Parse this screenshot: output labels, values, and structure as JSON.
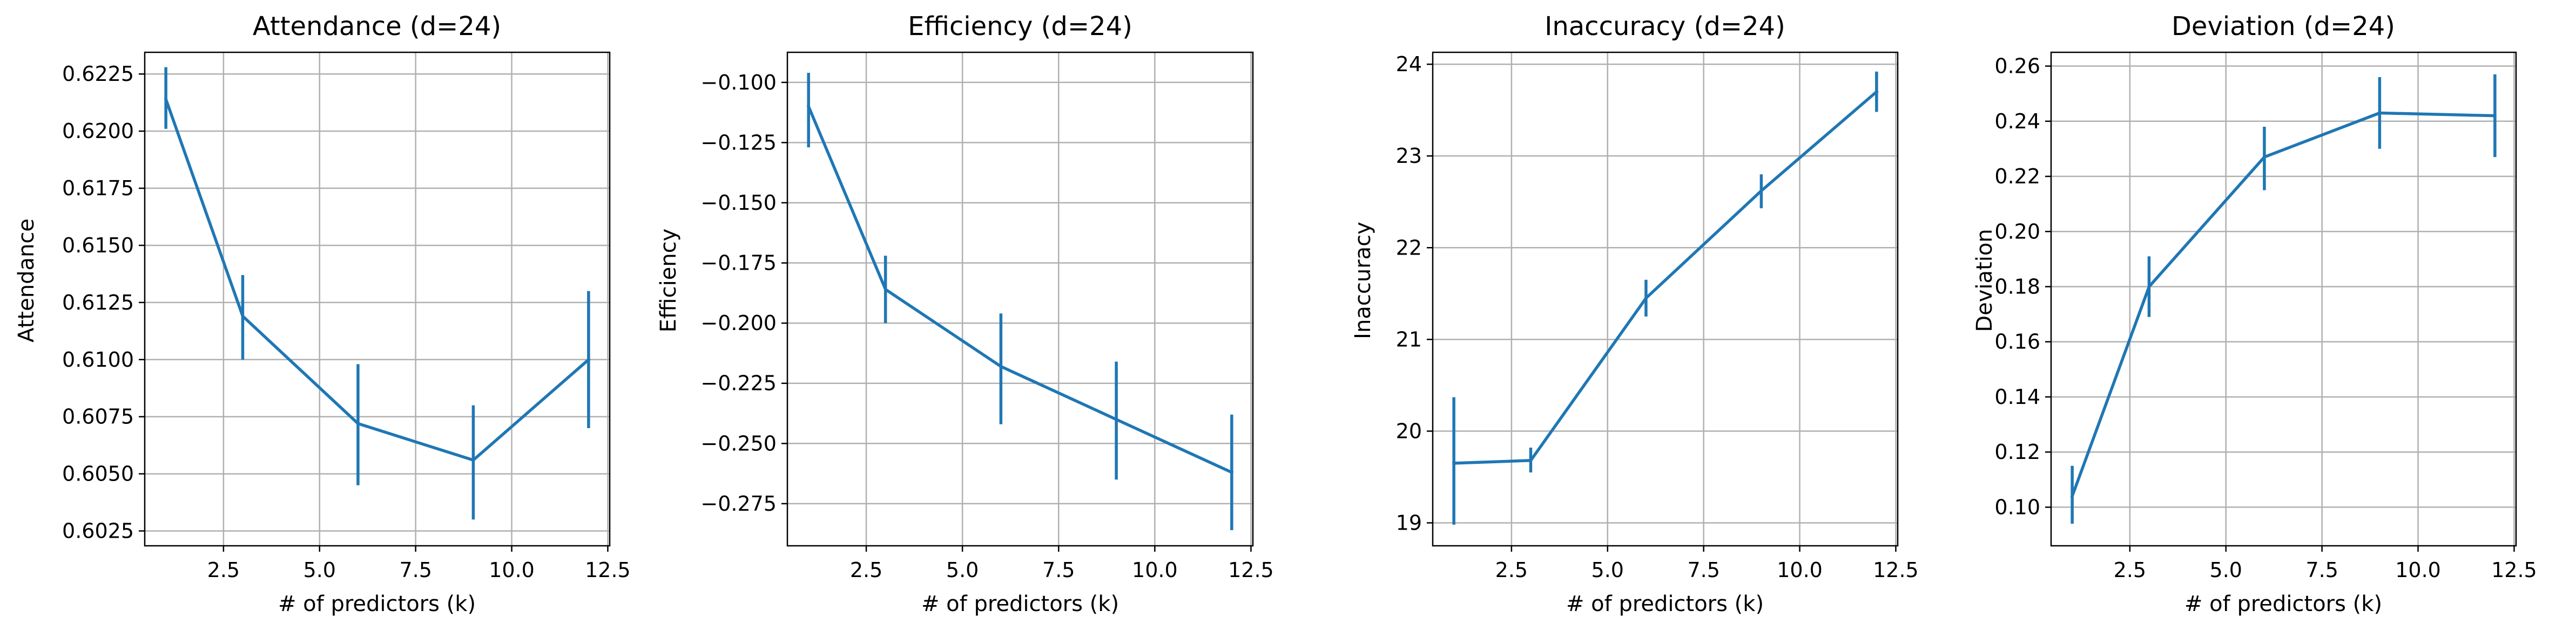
{
  "figure": {
    "background": "#ffffff",
    "line_color": "#1f77b4",
    "grid_color": "#b0b0b0"
  },
  "chart_data": [
    {
      "type": "line",
      "title": "Attendance (d=24)",
      "xlabel": "# of predictors (k)",
      "ylabel": "Attendance",
      "grid": true,
      "x": [
        1,
        3,
        6,
        9,
        12
      ],
      "series": [
        {
          "values": [
            0.6214,
            0.6119,
            0.6072,
            0.6056,
            0.61
          ],
          "err_low": [
            0.6201,
            0.61,
            0.6045,
            0.603,
            0.607
          ],
          "err_high": [
            0.6228,
            0.6137,
            0.6098,
            0.608,
            0.613
          ]
        }
      ],
      "xlim": [
        0.45,
        12.55
      ],
      "ylim": [
        0.60185,
        0.62345
      ],
      "xticks": [
        2.5,
        5.0,
        7.5,
        10.0,
        12.5
      ],
      "xtick_labels": [
        "2.5",
        "5.0",
        "7.5",
        "10.0",
        "12.5"
      ],
      "yticks": [
        0.6025,
        0.605,
        0.6075,
        0.61,
        0.6125,
        0.615,
        0.6175,
        0.62,
        0.6225
      ],
      "ytick_labels": [
        "0.6025",
        "0.6050",
        "0.6075",
        "0.6100",
        "0.6125",
        "0.6150",
        "0.6175",
        "0.6200",
        "0.6225"
      ]
    },
    {
      "type": "line",
      "title": "Efficiency (d=24)",
      "xlabel": "# of predictors (k)",
      "ylabel": "Efficiency",
      "grid": true,
      "x": [
        1,
        3,
        6,
        9,
        12
      ],
      "series": [
        {
          "values": [
            -0.11,
            -0.186,
            -0.218,
            -0.24,
            -0.262
          ],
          "err_low": [
            -0.127,
            -0.2,
            -0.242,
            -0.265,
            -0.286
          ],
          "err_high": [
            -0.096,
            -0.172,
            -0.196,
            -0.216,
            -0.238
          ]
        }
      ],
      "xlim": [
        0.45,
        12.55
      ],
      "ylim": [
        -0.2925,
        -0.0875
      ],
      "xticks": [
        2.5,
        5.0,
        7.5,
        10.0,
        12.5
      ],
      "xtick_labels": [
        "2.5",
        "5.0",
        "7.5",
        "10.0",
        "12.5"
      ],
      "yticks": [
        -0.275,
        -0.25,
        -0.225,
        -0.2,
        -0.175,
        -0.15,
        -0.125,
        -0.1
      ],
      "ytick_labels": [
        "−0.275",
        "−0.250",
        "−0.225",
        "−0.200",
        "−0.175",
        "−0.150",
        "−0.125",
        "−0.100"
      ]
    },
    {
      "type": "line",
      "title": "Inaccuracy (d=24)",
      "xlabel": "# of predictors (k)",
      "ylabel": "Inaccuracy",
      "grid": true,
      "x": [
        1,
        3,
        6,
        9,
        12
      ],
      "series": [
        {
          "values": [
            19.65,
            19.68,
            21.45,
            22.62,
            23.7
          ],
          "err_low": [
            18.98,
            19.55,
            21.25,
            22.43,
            23.48
          ],
          "err_high": [
            20.37,
            19.82,
            21.65,
            22.8,
            23.92
          ]
        }
      ],
      "xlim": [
        0.45,
        12.55
      ],
      "ylim": [
        18.75,
        24.13
      ],
      "xticks": [
        2.5,
        5.0,
        7.5,
        10.0,
        12.5
      ],
      "xtick_labels": [
        "2.5",
        "5.0",
        "7.5",
        "10.0",
        "12.5"
      ],
      "yticks": [
        19,
        20,
        21,
        22,
        23,
        24
      ],
      "ytick_labels": [
        "19",
        "20",
        "21",
        "22",
        "23",
        "24"
      ]
    },
    {
      "type": "line",
      "title": "Deviation (d=24)",
      "xlabel": "# of predictors (k)",
      "ylabel": "Deviation",
      "grid": true,
      "x": [
        1,
        3,
        6,
        9,
        12
      ],
      "series": [
        {
          "values": [
            0.104,
            0.18,
            0.227,
            0.243,
            0.242
          ],
          "err_low": [
            0.094,
            0.169,
            0.215,
            0.23,
            0.227
          ],
          "err_high": [
            0.115,
            0.191,
            0.238,
            0.256,
            0.257
          ]
        }
      ],
      "xlim": [
        0.45,
        12.55
      ],
      "ylim": [
        0.086,
        0.265
      ],
      "xticks": [
        2.5,
        5.0,
        7.5,
        10.0,
        12.5
      ],
      "xtick_labels": [
        "2.5",
        "5.0",
        "7.5",
        "10.0",
        "12.5"
      ],
      "yticks": [
        0.1,
        0.12,
        0.14,
        0.16,
        0.18,
        0.2,
        0.22,
        0.24,
        0.26
      ],
      "ytick_labels": [
        "0.10",
        "0.12",
        "0.14",
        "0.16",
        "0.18",
        "0.20",
        "0.22",
        "0.24",
        "0.26"
      ]
    }
  ]
}
